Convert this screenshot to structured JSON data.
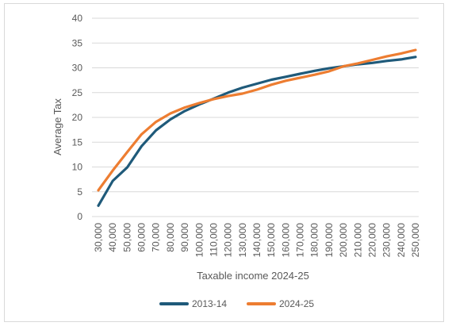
{
  "chart_data": {
    "type": "line",
    "title": "",
    "xlabel": "Taxable income 2024-25",
    "ylabel": "Average Tax",
    "ylim": [
      0,
      40
    ],
    "yticks": [
      "0",
      "5",
      "10",
      "15",
      "20",
      "25",
      "30",
      "35",
      "40"
    ],
    "grid": "horizontal",
    "legend_position": "bottom",
    "categories": [
      "30,000",
      "40,000",
      "50,000",
      "60,000",
      "70,000",
      "80,000",
      "90,000",
      "100,000",
      "110,000",
      "120,000",
      "130,000",
      "140,000",
      "150,000",
      "160,000",
      "170,000",
      "180,000",
      "190,000",
      "200,000",
      "210,000",
      "220,000",
      "230,000",
      "240,000",
      "250,000"
    ],
    "series": [
      {
        "name": "2013-14",
        "color": "#1f5a7a",
        "values": [
          2.2,
          7.2,
          9.9,
          14.2,
          17.4,
          19.6,
          21.3,
          22.6,
          23.8,
          25.0,
          26.0,
          26.8,
          27.6,
          28.2,
          28.8,
          29.4,
          29.9,
          30.3,
          30.7,
          31.0,
          31.4,
          31.7,
          32.2
        ]
      },
      {
        "name": "2024-25",
        "color": "#ed7d31",
        "values": [
          5.3,
          9.3,
          13.0,
          16.6,
          19.1,
          20.8,
          22.0,
          22.9,
          23.7,
          24.3,
          24.8,
          25.6,
          26.6,
          27.4,
          28.0,
          28.6,
          29.3,
          30.3,
          30.9,
          31.6,
          32.3,
          32.9,
          33.6
        ]
      }
    ]
  }
}
